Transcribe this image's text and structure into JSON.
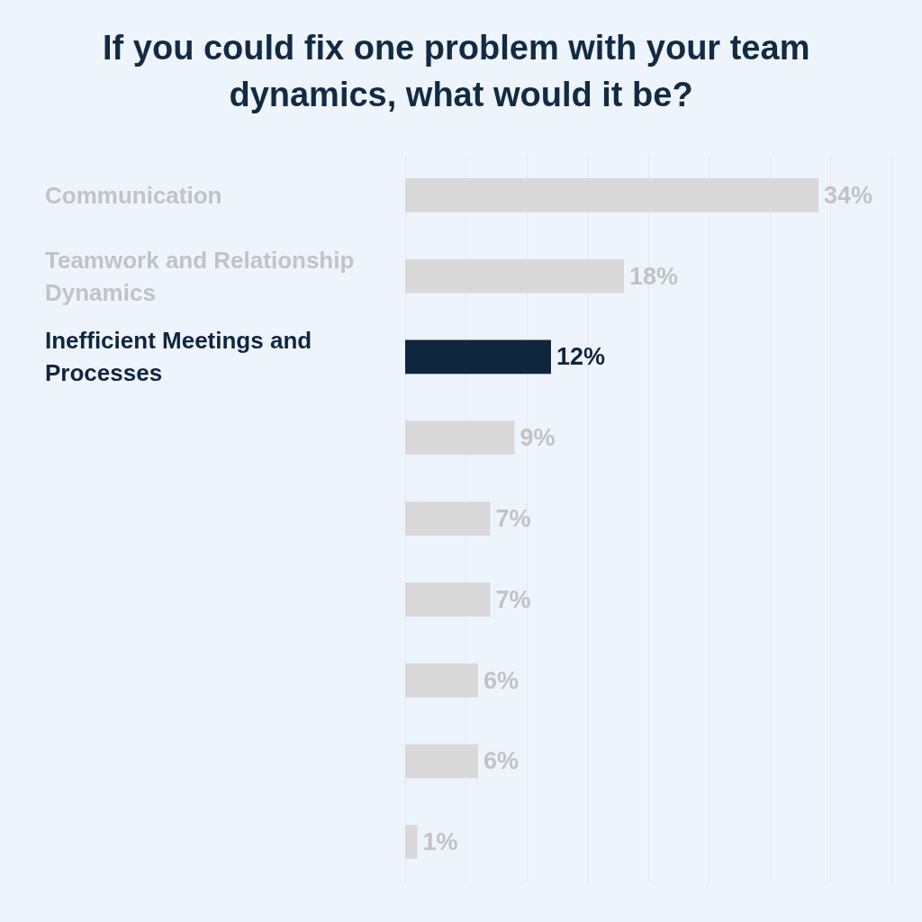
{
  "chart_data": {
    "type": "bar",
    "orientation": "horizontal",
    "title": "If you could fix one problem with your team dynamics, what would it be?",
    "categories": [
      "Communication",
      "Teamwork and Relationship Dynamics",
      "Inefficient Meetings and Processes",
      null,
      null,
      null,
      null,
      null,
      null
    ],
    "values": [
      34,
      18,
      12,
      9,
      7,
      7,
      6,
      6,
      1
    ],
    "colors": [
      "#d9d9d9",
      "#d9d9d9",
      "#10263f",
      "#d9d9d9",
      "#d9d9d9",
      "#d9d9d9",
      "#d9d9d9",
      "#d9d9d9",
      "#d9d9d9"
    ],
    "value_labels": [
      "34%",
      "18%",
      "12%",
      "9%",
      "7%",
      "7%",
      "6%",
      "6%",
      "1%"
    ],
    "xlim": [
      0,
      40
    ],
    "xticks": [
      {
        "value": 0,
        "label": null
      },
      {
        "value": 5,
        "label": null
      },
      {
        "value": 10,
        "label": null
      },
      {
        "value": 15,
        "label": null
      },
      {
        "value": 20,
        "label": null
      },
      {
        "value": 25,
        "label": null
      },
      {
        "value": 30,
        "label": null
      },
      {
        "value": 35,
        "label": null
      },
      {
        "value": 40,
        "label": null
      }
    ],
    "grid": "x",
    "tick_labels": "y"
  }
}
